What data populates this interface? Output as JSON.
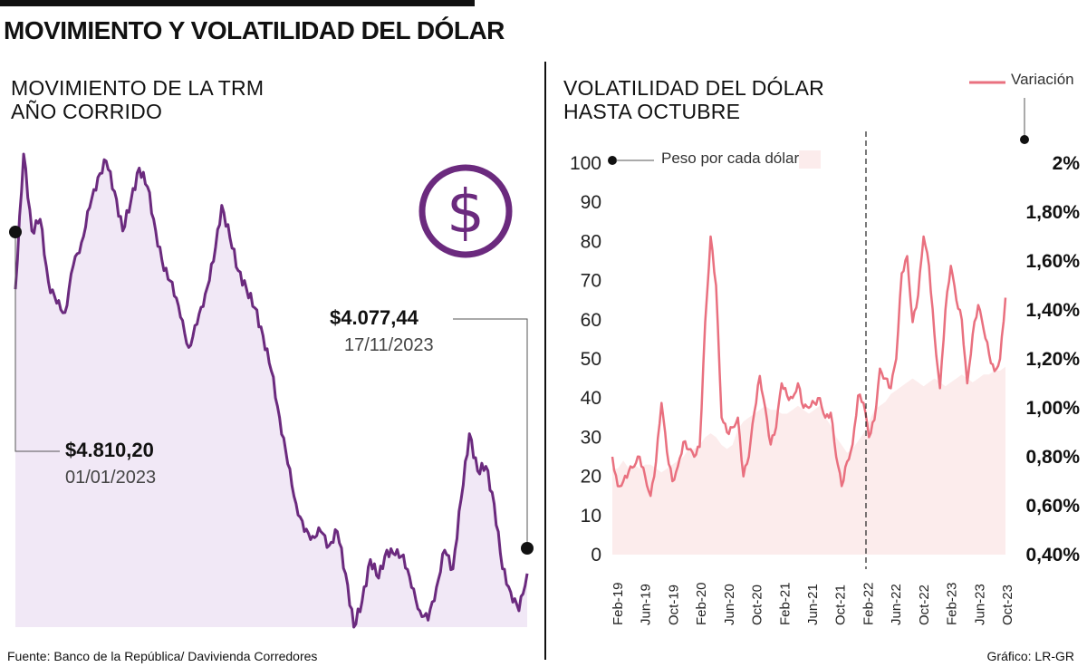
{
  "header": {
    "title": "MOVIMIENTO Y VOLATILIDAD DEL DÓLAR",
    "source": "Fuente: Banco de la República/ Davivienda Corredores",
    "credit": "Gráfico: LR-GR"
  },
  "colors": {
    "trm_line": "#6b2a7e",
    "trm_fill": "#f1e8f6",
    "vol_line": "#e9707f",
    "vol_fill": "#fcecec",
    "icon": "#6b2a7e"
  },
  "icons": {
    "currency": "dollar-icon"
  },
  "chart_data": [
    {
      "type": "area",
      "title": "MOVIMIENTO DE LA TRM AÑO CORRIDO",
      "shape_values": [
        0.3,
        0.88,
        0.55,
        0.6,
        0.33,
        0.24,
        0.2,
        0.4,
        0.5,
        0.65,
        0.78,
        0.85,
        0.72,
        0.55,
        0.68,
        0.82,
        0.74,
        0.55,
        0.38,
        0.33,
        0.18,
        0.05,
        0.15,
        0.28,
        0.42,
        0.66,
        0.52,
        0.38,
        0.3,
        0.22,
        0.1,
        -0.05,
        -0.25,
        -0.45,
        -0.62,
        -0.74,
        -0.76,
        -0.74,
        -0.8,
        -0.74,
        -0.92,
        -1.15,
        -1.04,
        -0.86,
        -0.94,
        -0.82,
        -0.84,
        -0.84,
        -0.98,
        -1.08,
        -1.12,
        -0.98,
        -0.82,
        -0.9,
        -0.6,
        -0.32,
        -0.48,
        -0.46,
        -0.62,
        -0.9,
        -1.0,
        -1.08,
        -0.92
      ],
      "annotations": [
        {
          "value": "$4.810,20",
          "date": "01/01/2023"
        },
        {
          "value": "$4.077,44",
          "date": "17/11/2023"
        }
      ]
    },
    {
      "type": "line",
      "title": "VOLATILIDAD DEL DÓLAR HASTA OCTUBRE",
      "legend": "Variación",
      "legend_position": "top-right",
      "area_label": "Peso por cada dólar",
      "x_labels": [
        "Feb-19",
        "Jun-19",
        "Oct-19",
        "Feb-20",
        "Jun-20",
        "Oct-20",
        "Feb-21",
        "Jun-21",
        "Oct-21",
        "Feb-22",
        "Jun-22",
        "Oct-22",
        "Feb-23",
        "Jun-23",
        "Oct-23"
      ],
      "y_left": {
        "ticks": [
          "100",
          "90",
          "80",
          "70",
          "60",
          "50",
          "40",
          "30",
          "20",
          "10",
          "0"
        ],
        "ylim": [
          0,
          100
        ]
      },
      "y_right": {
        "ticks": [
          "2%",
          "1,80%",
          "1,60%",
          "1,40%",
          "1,20%",
          "1,00%",
          "0,80%",
          "0,60%",
          "0,40%"
        ],
        "ylim": [
          0.4,
          2.0
        ]
      },
      "variation_series": [
        0.8,
        0.68,
        0.7,
        0.74,
        0.76,
        0.8,
        0.72,
        0.64,
        0.78,
        1.02,
        0.82,
        0.7,
        0.76,
        0.86,
        0.83,
        0.8,
        0.84,
        1.35,
        1.7,
        1.5,
        0.96,
        0.9,
        0.92,
        0.96,
        0.72,
        0.8,
        0.98,
        1.13,
        1.0,
        0.85,
        0.92,
        1.1,
        1.05,
        1.04,
        1.1,
        1.0,
        1.0,
        1.02,
        1.04,
        0.96,
        0.98,
        0.8,
        0.68,
        0.78,
        0.85,
        1.05,
        1.02,
        0.88,
        0.95,
        1.16,
        1.12,
        1.08,
        1.2,
        1.55,
        1.62,
        1.35,
        1.46,
        1.7,
        1.58,
        1.3,
        1.08,
        1.4,
        1.58,
        1.44,
        1.36,
        1.1,
        1.3,
        1.42,
        1.32,
        1.22,
        1.15,
        1.2,
        1.45
      ],
      "area_series": [
        22,
        22,
        24,
        22,
        23,
        22,
        23,
        23,
        22,
        21,
        22,
        23,
        24,
        25,
        27,
        27,
        28,
        30,
        31,
        30,
        28,
        27,
        28,
        32,
        34,
        35,
        36,
        37,
        38,
        37,
        37,
        36,
        36,
        37,
        38,
        37,
        36,
        37,
        38,
        35,
        33,
        30,
        28,
        26,
        27,
        29,
        31,
        34,
        37,
        38,
        39,
        41,
        42,
        43,
        44,
        45,
        44,
        43,
        44,
        45,
        44,
        43,
        44,
        45,
        46,
        45,
        44,
        45,
        46,
        46,
        47,
        47,
        48
      ]
    }
  ]
}
